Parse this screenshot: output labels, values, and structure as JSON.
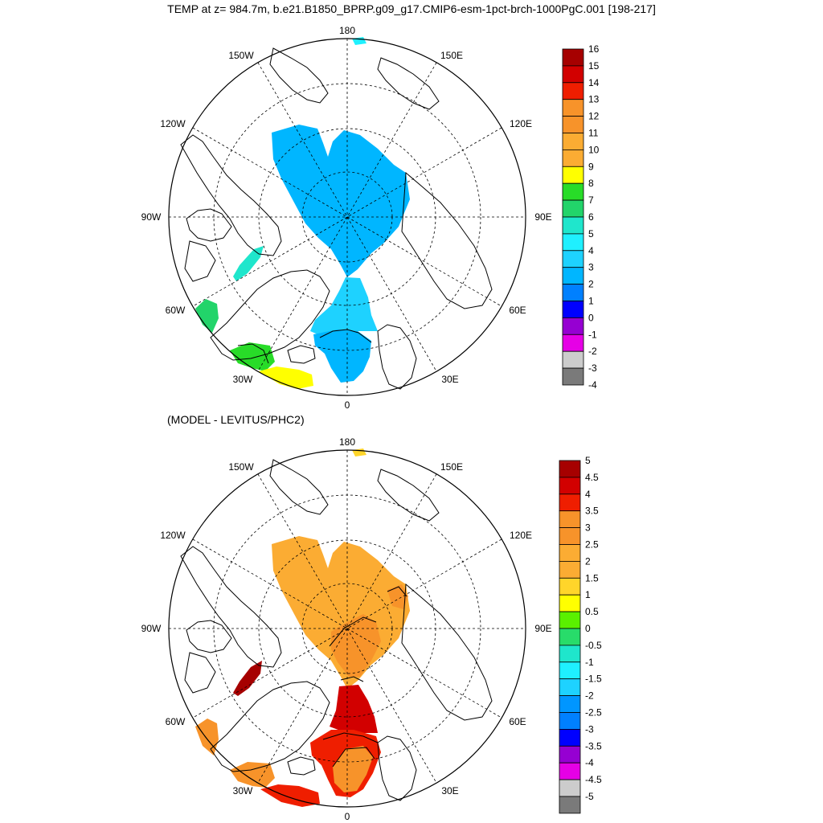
{
  "title": "TEMP at z= 984.7m, b.e21.B1850_BPRP.g09_g17.CMIP6-esm-1pct-brch-1000PgC.001 [198-217]",
  "subtitle": "(MODEL - LEVITUS/PHC2)",
  "longitude_labels": {
    "lon180": "180",
    "lon150W": "150W",
    "lon150E": "150E",
    "lon120W": "120W",
    "lon120E": "120E",
    "lon90W": "90W",
    "lon90E": "90E",
    "lon60W": "60W",
    "lon60E": "60E",
    "lon30W": "30W",
    "lon30E": "30E",
    "lon0": "0"
  },
  "colors": {
    "top": {
      "arctic": "#00b6ff",
      "norway": "#1ed2ff",
      "labrador": "#1fe6cc",
      "baffin_south": "#22d46a",
      "iceland_south": "#28dc28",
      "north_atlantic": "#ffff00",
      "bering": "#1ff0ff",
      "contour": "#000000"
    },
    "bottom": {
      "arctic": "#fbac33",
      "lomonosov": "#f7932a",
      "fram": "#d20000",
      "norway": "#ef1e00",
      "baffin_north": "#a60000",
      "labrador": "#f7932a",
      "iceland": "#f7932a",
      "north_atlantic": "#ef1e00",
      "bering": "#ffd52a"
    }
  },
  "colorbar_top": {
    "labels": [
      "16",
      "15",
      "14",
      "13",
      "12",
      "11",
      "10",
      "9",
      "8",
      "7",
      "6",
      "5",
      "4",
      "3",
      "2",
      "1",
      "0",
      "-1",
      "-2",
      "-3",
      "-4"
    ],
    "colors": [
      "#a60000",
      "#d20000",
      "#ef1e00",
      "#f7932a",
      "#f7932a",
      "#fbac33",
      "#fbac33",
      "#ffff00",
      "#28dc28",
      "#22d46a",
      "#1fe6cc",
      "#1ff0ff",
      "#1ed2ff",
      "#00b6ff",
      "#0080ff",
      "#0000ff",
      "#9600d2",
      "#e600e6",
      "#cccccc",
      "#7a7a7a"
    ]
  },
  "colorbar_bottom": {
    "labels": [
      "5",
      "4.5",
      "4",
      "3.5",
      "3",
      "2.5",
      "2",
      "1.5",
      "1",
      "0.5",
      "0",
      "-0.5",
      "-1",
      "-1.5",
      "-2",
      "-2.5",
      "-3",
      "-3.5",
      "-4",
      "-4.5",
      "-5"
    ],
    "colors": [
      "#a60000",
      "#d20000",
      "#ef1e00",
      "#f7932a",
      "#f7932a",
      "#fbac33",
      "#fbac33",
      "#ffd52a",
      "#ffff00",
      "#5af000",
      "#28dc6a",
      "#1fe6cc",
      "#1ff0ff",
      "#1ed2ff",
      "#0096ff",
      "#0080ff",
      "#0000ff",
      "#9600d2",
      "#e600e6",
      "#cccccc",
      "#7a7a7a"
    ]
  }
}
